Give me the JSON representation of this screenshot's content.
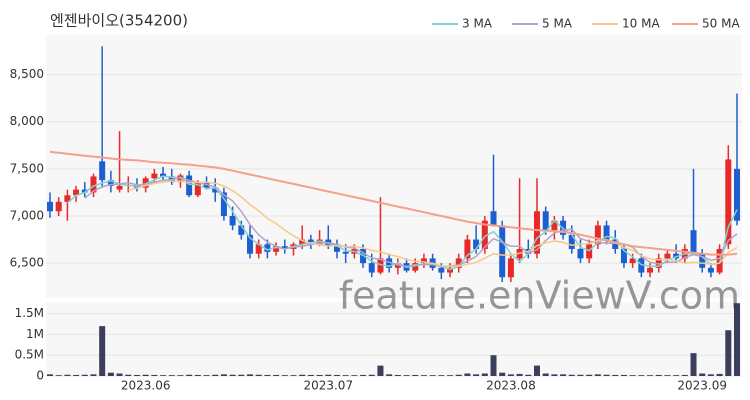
{
  "chart_data": [
    {
      "type": "candlestick",
      "title": "엔젠바이오(354200)",
      "categories": [
        null,
        null,
        null,
        null,
        null,
        null,
        null,
        null,
        null,
        null,
        null,
        "2023.06",
        null,
        null,
        null,
        null,
        null,
        null,
        null,
        null,
        null,
        null,
        null,
        null,
        null,
        null,
        null,
        null,
        null,
        null,
        null,
        null,
        "2023.07",
        null,
        null,
        null,
        null,
        null,
        null,
        null,
        null,
        null,
        null,
        null,
        null,
        null,
        null,
        null,
        null,
        null,
        null,
        null,
        null,
        "2023.08",
        null,
        null,
        null,
        null,
        null,
        null,
        null,
        null,
        null,
        null,
        null,
        null,
        null,
        null,
        null,
        null,
        null,
        null,
        null,
        null,
        null,
        "2023.09",
        null,
        null,
        null,
        null
      ],
      "open": [
        7150,
        7050,
        7150,
        7220,
        7280,
        7250,
        7580,
        7380,
        7280,
        7320,
        7330,
        7300,
        7400,
        7450,
        7420,
        7360,
        7430,
        7220,
        7350,
        7300,
        7250,
        7000,
        6900,
        6800,
        6600,
        6700,
        6620,
        6680,
        6650,
        6700,
        6750,
        6700,
        6750,
        6680,
        6620,
        6600,
        6650,
        6500,
        6400,
        6550,
        6450,
        6500,
        6420,
        6500,
        6550,
        6450,
        6400,
        6450,
        6550,
        6750,
        6650,
        7050,
        6900,
        6350,
        6550,
        6650,
        6600,
        7050,
        6850,
        6950,
        6800,
        6650,
        6550,
        6700,
        6900,
        6750,
        6650,
        6500,
        6550,
        6400,
        6450,
        6550,
        6600,
        6550,
        6850,
        6600,
        6450,
        6400,
        6700,
        7500
      ],
      "high": [
        7250,
        7200,
        7280,
        7320,
        7360,
        7450,
        8800,
        7480,
        7900,
        7420,
        7400,
        7420,
        7500,
        7520,
        7500,
        7450,
        7480,
        7380,
        7420,
        7400,
        7300,
        7100,
        6950,
        6900,
        6750,
        6750,
        6720,
        6750,
        6720,
        6900,
        6800,
        6850,
        6900,
        6750,
        6700,
        6700,
        6700,
        6600,
        7200,
        6600,
        6550,
        6550,
        6550,
        6600,
        6600,
        6500,
        6500,
        6600,
        6800,
        6900,
        7000,
        7650,
        6950,
        6600,
        7400,
        6750,
        7400,
        7100,
        7000,
        7000,
        6900,
        6750,
        6750,
        6950,
        6950,
        6850,
        6700,
        6600,
        6600,
        6500,
        6600,
        6650,
        6700,
        6700,
        7500,
        6650,
        6500,
        6700,
        7750,
        8300
      ],
      "low": [
        6980,
        7000,
        6950,
        7150,
        7200,
        7200,
        7300,
        7250,
        7250,
        7250,
        7260,
        7250,
        7350,
        7380,
        7330,
        7300,
        7200,
        7200,
        7280,
        7150,
        6950,
        6850,
        6750,
        6550,
        6550,
        6550,
        6580,
        6600,
        6580,
        6650,
        6650,
        6680,
        6650,
        6550,
        6500,
        6550,
        6450,
        6350,
        6380,
        6400,
        6380,
        6400,
        6400,
        6450,
        6420,
        6330,
        6350,
        6400,
        6500,
        6600,
        6600,
        6900,
        6300,
        6300,
        6500,
        6550,
        6550,
        6800,
        6750,
        6750,
        6600,
        6500,
        6500,
        6650,
        6700,
        6600,
        6450,
        6450,
        6350,
        6350,
        6400,
        6500,
        6500,
        6500,
        6600,
        6400,
        6350,
        6380,
        6650,
        6900
      ],
      "close": [
        7050,
        7150,
        7220,
        7280,
        7250,
        7420,
        7380,
        7320,
        7320,
        7330,
        7300,
        7400,
        7450,
        7420,
        7360,
        7430,
        7220,
        7350,
        7300,
        7250,
        7000,
        6900,
        6800,
        6600,
        6700,
        6620,
        6680,
        6650,
        6700,
        6750,
        6700,
        6750,
        6680,
        6620,
        6600,
        6650,
        6500,
        6400,
        6550,
        6450,
        6500,
        6420,
        6500,
        6550,
        6450,
        6400,
        6450,
        6550,
        6750,
        6650,
        6950,
        6900,
        6350,
        6550,
        6650,
        6600,
        7050,
        6850,
        6950,
        6800,
        6650,
        6550,
        6700,
        6900,
        6750,
        6650,
        6500,
        6550,
        6400,
        6450,
        6550,
        6600,
        6550,
        6650,
        6600,
        6450,
        6400,
        6650,
        7600,
        6950
      ],
      "up_color": "#e8292a",
      "down_color": "#1d5fd0",
      "series": [
        {
          "name": "3 MA",
          "color": "#7fd3d3",
          "values": [
            null,
            null,
            7140,
            7217,
            7250,
            7317,
            7350,
            7373,
            7340,
            7323,
            7317,
            7343,
            7383,
            7423,
            7410,
            7403,
            7337,
            7333,
            7290,
            7300,
            7183,
            7050,
            6900,
            6767,
            6700,
            6640,
            6667,
            6650,
            6677,
            6700,
            6717,
            6733,
            6710,
            6683,
            6633,
            6623,
            6583,
            6517,
            6483,
            6467,
            6500,
            6457,
            6473,
            6490,
            6500,
            6467,
            6433,
            6467,
            6583,
            6650,
            6783,
            6833,
            6733,
            6600,
            6517,
            6600,
            6767,
            6833,
            6950,
            6867,
            6800,
            6667,
            6633,
            6717,
            6783,
            6767,
            6633,
            6567,
            6483,
            6467,
            6467,
            6533,
            6567,
            6600,
            6600,
            6567,
            6483,
            6500,
            6883,
            7067
          ]
        },
        {
          "name": "5 MA",
          "color": "#b4a3c9",
          "values": [
            null,
            null,
            null,
            null,
            7190,
            7264,
            7310,
            7334,
            7338,
            7354,
            7330,
            7334,
            7360,
            7380,
            7386,
            7412,
            7376,
            7356,
            7332,
            7310,
            7224,
            7160,
            7050,
            6910,
            6800,
            6724,
            6680,
            6650,
            6670,
            6680,
            6696,
            6710,
            6716,
            6700,
            6670,
            6660,
            6610,
            6554,
            6540,
            6510,
            6480,
            6464,
            6484,
            6484,
            6484,
            6464,
            6470,
            6480,
            6520,
            6570,
            6670,
            6760,
            6720,
            6680,
            6680,
            6610,
            6640,
            6740,
            6820,
            6850,
            6860,
            6760,
            6730,
            6720,
            6710,
            6710,
            6700,
            6670,
            6570,
            6510,
            6490,
            6510,
            6510,
            6560,
            6590,
            6570,
            6530,
            6550,
            6740,
            6810
          ]
        },
        {
          "name": "10 MA",
          "color": "#f5c98a",
          "values": [
            null,
            null,
            null,
            null,
            null,
            null,
            null,
            null,
            null,
            7272,
            7297,
            7322,
            7345,
            7359,
            7370,
            7371,
            7355,
            7358,
            7356,
            7348,
            7318,
            7268,
            7203,
            7121,
            7055,
            6974,
            6920,
            6850,
            6790,
            6740,
            6710,
            6695,
            6683,
            6685,
            6675,
            6678,
            6660,
            6635,
            6620,
            6590,
            6570,
            6537,
            6519,
            6512,
            6497,
            6472,
            6467,
            6467,
            6487,
            6507,
            6552,
            6600,
            6585,
            6585,
            6605,
            6625,
            6685,
            6715,
            6735,
            6720,
            6690,
            6700,
            6705,
            6740,
            6750,
            6720,
            6665,
            6635,
            6580,
            6545,
            6535,
            6540,
            6525,
            6500,
            6510,
            6500,
            6490,
            6500,
            6615,
            6665
          ]
        },
        {
          "name": "50 MA",
          "color": "#f4a08a",
          "values": [
            7680,
            7670,
            7660,
            7650,
            7640,
            7630,
            7620,
            7610,
            7600,
            7595,
            7590,
            7580,
            7570,
            7565,
            7560,
            7550,
            7545,
            7535,
            7525,
            7515,
            7500,
            7480,
            7460,
            7440,
            7420,
            7400,
            7380,
            7360,
            7340,
            7320,
            7300,
            7280,
            7260,
            7240,
            7220,
            7200,
            7180,
            7160,
            7140,
            7120,
            7100,
            7080,
            7060,
            7040,
            7020,
            7000,
            6980,
            6960,
            6940,
            6925,
            6910,
            6900,
            6890,
            6880,
            6870,
            6860,
            6850,
            6845,
            6840,
            6830,
            6820,
            6800,
            6780,
            6760,
            6740,
            6720,
            6700,
            6680,
            6670,
            6660,
            6650,
            6640,
            6630,
            6620,
            6610,
            6600,
            6590,
            6590,
            6590,
            6600
          ]
        }
      ],
      "ylim": [
        6130,
        8920
      ],
      "yticks": [
        {
          "value": 6500,
          "label": "6,500"
        },
        {
          "value": 7000,
          "label": "7,000"
        },
        {
          "value": 7500,
          "label": "7,500"
        },
        {
          "value": 8000,
          "label": "8,000"
        },
        {
          "value": 8500,
          "label": "8,500"
        }
      ],
      "grid": true
    },
    {
      "type": "bar",
      "color": "#3b3f5c",
      "values": [
        40000,
        20000,
        30000,
        25000,
        30000,
        40000,
        1200000,
        80000,
        60000,
        30000,
        25000,
        30000,
        25000,
        20000,
        20000,
        20000,
        30000,
        25000,
        20000,
        30000,
        40000,
        30000,
        30000,
        40000,
        30000,
        25000,
        25000,
        20000,
        20000,
        30000,
        25000,
        25000,
        30000,
        25000,
        20000,
        20000,
        25000,
        30000,
        250000,
        40000,
        25000,
        20000,
        25000,
        20000,
        20000,
        20000,
        20000,
        30000,
        60000,
        40000,
        60000,
        500000,
        80000,
        40000,
        50000,
        30000,
        250000,
        60000,
        40000,
        40000,
        30000,
        30000,
        30000,
        40000,
        30000,
        25000,
        25000,
        20000,
        20000,
        20000,
        25000,
        20000,
        20000,
        25000,
        550000,
        60000,
        40000,
        50000,
        1100000,
        1750000
      ],
      "ylim": [
        0,
        1780000
      ],
      "yticks": [
        0,
        {
          "value": 500000,
          "label": "0.5M"
        },
        {
          "value": 1000000,
          "label": "1M"
        },
        {
          "value": 1500000,
          "label": "1.5M"
        }
      ],
      "grid": true
    }
  ],
  "watermark": "feature.enViewV.com"
}
